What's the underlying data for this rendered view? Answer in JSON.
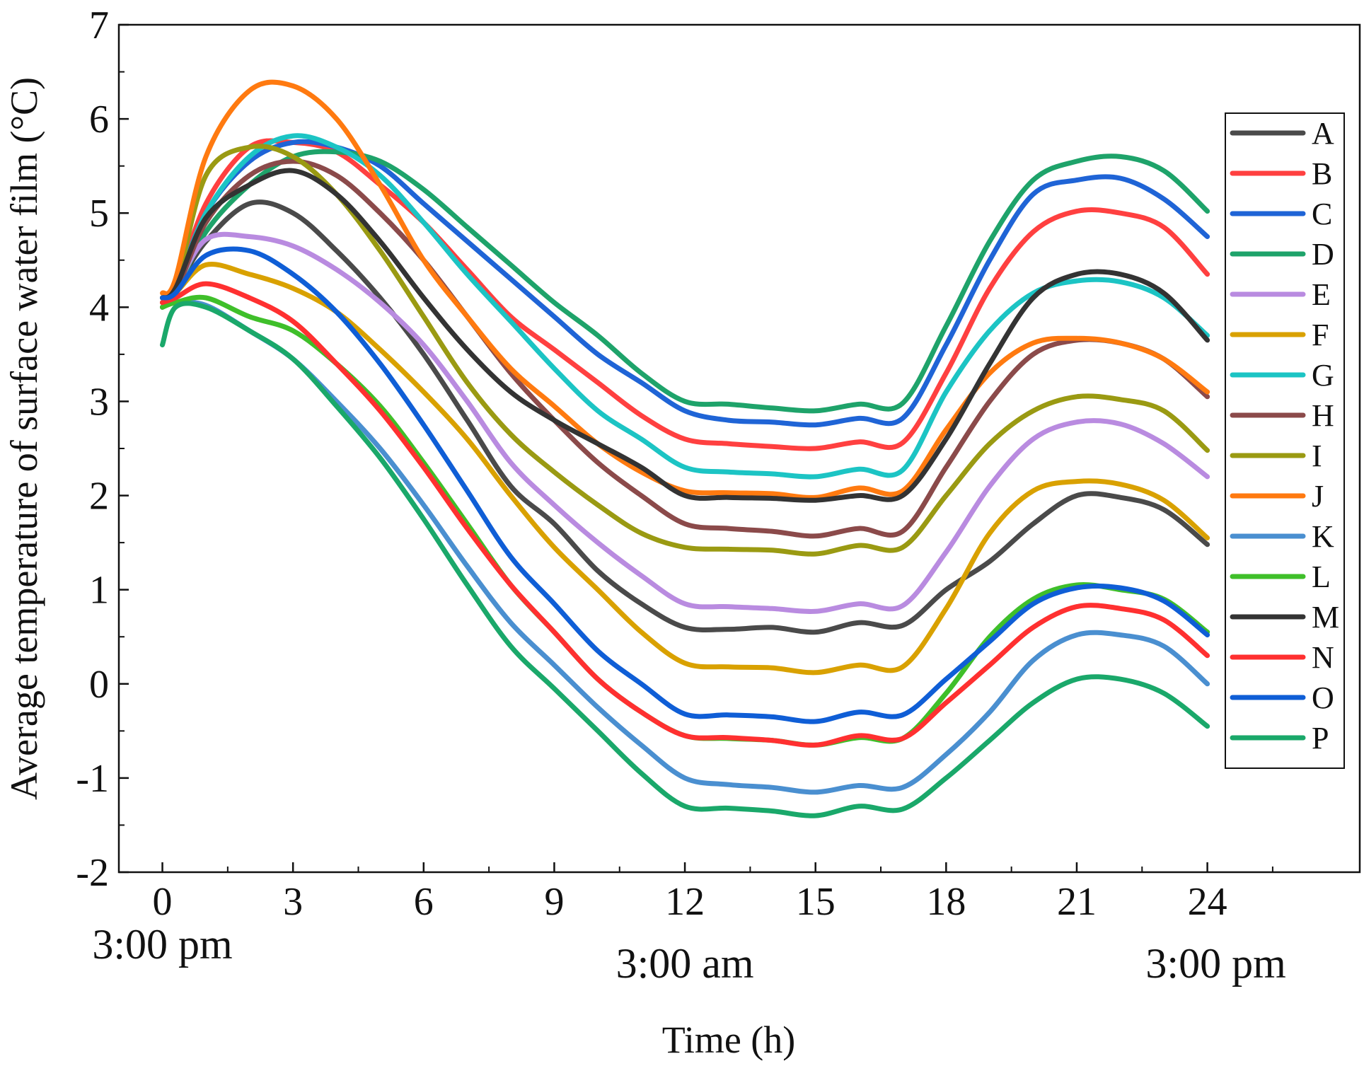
{
  "chart_data": {
    "type": "line",
    "title": "",
    "xlabel": "Time (h)",
    "ylabel": "Average temperature of surface water film (°C)",
    "xlim": [
      -1,
      27.5
    ],
    "ylim": [
      -2,
      7
    ],
    "xticks": [
      0,
      3,
      6,
      9,
      12,
      15,
      18,
      21,
      24
    ],
    "yticks": [
      -2,
      -1,
      0,
      1,
      2,
      3,
      4,
      5,
      6,
      7
    ],
    "time_notes": [
      {
        "x": 0,
        "label": "3:00 pm"
      },
      {
        "x": 12,
        "label": "3:00 am"
      },
      {
        "x": 24,
        "label": "3:00 pm"
      }
    ],
    "legend_position": "right",
    "x": [
      0,
      0.3,
      1,
      2,
      3,
      4,
      5,
      6,
      7,
      8,
      9,
      10,
      11,
      12,
      13,
      14,
      15,
      16,
      17,
      18,
      19,
      20,
      21,
      22,
      23,
      24
    ],
    "series": [
      {
        "name": "A",
        "color": "#4a4a4a",
        "values": [
          4.1,
          4.2,
          4.7,
          5.1,
          5.0,
          4.6,
          4.1,
          3.5,
          2.8,
          2.1,
          1.7,
          1.2,
          0.85,
          0.6,
          0.58,
          0.6,
          0.55,
          0.65,
          0.62,
          1.0,
          1.3,
          1.7,
          2.0,
          1.98,
          1.85,
          1.48
        ]
      },
      {
        "name": "B",
        "color": "#ff4040",
        "values": [
          4.0,
          4.2,
          5.1,
          5.7,
          5.75,
          5.65,
          5.3,
          4.9,
          4.4,
          3.9,
          3.55,
          3.2,
          2.85,
          2.6,
          2.55,
          2.52,
          2.5,
          2.57,
          2.56,
          3.3,
          4.2,
          4.8,
          5.02,
          5.0,
          4.85,
          4.35
        ]
      },
      {
        "name": "C",
        "color": "#1f64d6",
        "values": [
          4.05,
          4.2,
          5.0,
          5.55,
          5.75,
          5.7,
          5.5,
          5.1,
          4.7,
          4.3,
          3.9,
          3.5,
          3.2,
          2.9,
          2.8,
          2.78,
          2.75,
          2.82,
          2.82,
          3.6,
          4.5,
          5.2,
          5.35,
          5.37,
          5.15,
          4.75
        ]
      },
      {
        "name": "D",
        "color": "#1ea36a",
        "values": [
          4.0,
          4.15,
          4.8,
          5.3,
          5.6,
          5.65,
          5.55,
          5.25,
          4.85,
          4.45,
          4.05,
          3.7,
          3.3,
          3.0,
          2.97,
          2.93,
          2.9,
          2.97,
          2.98,
          3.8,
          4.7,
          5.35,
          5.55,
          5.6,
          5.45,
          5.02
        ]
      },
      {
        "name": "E",
        "color": "#b98be0",
        "values": [
          4.05,
          4.2,
          4.72,
          4.75,
          4.65,
          4.4,
          4.05,
          3.6,
          3.0,
          2.35,
          1.9,
          1.5,
          1.15,
          0.85,
          0.82,
          0.8,
          0.77,
          0.85,
          0.83,
          1.4,
          2.1,
          2.6,
          2.78,
          2.76,
          2.55,
          2.2
        ]
      },
      {
        "name": "F",
        "color": "#d9a100",
        "values": [
          4.05,
          4.15,
          4.45,
          4.35,
          4.2,
          3.95,
          3.55,
          3.1,
          2.6,
          2.0,
          1.45,
          1.0,
          0.55,
          0.22,
          0.18,
          0.17,
          0.12,
          0.2,
          0.18,
          0.8,
          1.6,
          2.05,
          2.15,
          2.12,
          1.95,
          1.55
        ]
      },
      {
        "name": "G",
        "color": "#1cc4c4",
        "values": [
          4.1,
          4.2,
          5.0,
          5.6,
          5.82,
          5.7,
          5.4,
          4.9,
          4.35,
          3.85,
          3.35,
          2.9,
          2.6,
          2.3,
          2.25,
          2.23,
          2.2,
          2.28,
          2.27,
          3.1,
          3.75,
          4.15,
          4.28,
          4.27,
          4.1,
          3.7
        ]
      },
      {
        "name": "H",
        "color": "#8b4a4a",
        "values": [
          4.0,
          4.15,
          4.9,
          5.4,
          5.55,
          5.4,
          5.0,
          4.5,
          3.9,
          3.3,
          2.8,
          2.35,
          2.0,
          1.7,
          1.65,
          1.62,
          1.57,
          1.65,
          1.62,
          2.3,
          3.0,
          3.5,
          3.65,
          3.62,
          3.45,
          3.05
        ]
      },
      {
        "name": "I",
        "color": "#9a9a12",
        "values": [
          4.1,
          4.2,
          5.4,
          5.7,
          5.6,
          5.2,
          4.6,
          3.9,
          3.2,
          2.65,
          2.25,
          1.9,
          1.6,
          1.45,
          1.43,
          1.42,
          1.38,
          1.47,
          1.45,
          2.0,
          2.55,
          2.9,
          3.05,
          3.02,
          2.9,
          2.48
        ]
      },
      {
        "name": "J",
        "color": "#ff7a10",
        "values": [
          4.15,
          4.3,
          5.6,
          6.3,
          6.35,
          6.0,
          5.3,
          4.5,
          3.9,
          3.35,
          2.95,
          2.55,
          2.25,
          2.05,
          2.03,
          2.02,
          1.98,
          2.08,
          2.05,
          2.7,
          3.3,
          3.62,
          3.67,
          3.62,
          3.45,
          3.1
        ]
      },
      {
        "name": "K",
        "color": "#4a8fd0",
        "values": [
          4.0,
          4.05,
          4.02,
          3.75,
          3.45,
          3.0,
          2.5,
          1.9,
          1.25,
          0.65,
          0.2,
          -0.25,
          -0.65,
          -1.0,
          -1.07,
          -1.1,
          -1.15,
          -1.08,
          -1.1,
          -0.75,
          -0.3,
          0.25,
          0.52,
          0.52,
          0.4,
          0.0
        ]
      },
      {
        "name": "L",
        "color": "#3fbf2a",
        "values": [
          4.0,
          4.05,
          4.1,
          3.9,
          3.75,
          3.4,
          2.95,
          2.35,
          1.7,
          1.05,
          0.55,
          0.05,
          -0.3,
          -0.55,
          -0.58,
          -0.6,
          -0.65,
          -0.57,
          -0.58,
          -0.1,
          0.5,
          0.9,
          1.05,
          1.0,
          0.9,
          0.55
        ]
      },
      {
        "name": "M",
        "color": "#333333",
        "values": [
          4.1,
          4.2,
          4.95,
          5.3,
          5.45,
          5.2,
          4.7,
          4.1,
          3.55,
          3.1,
          2.8,
          2.55,
          2.3,
          2.0,
          1.98,
          1.97,
          1.95,
          2.0,
          2.0,
          2.6,
          3.4,
          4.1,
          4.35,
          4.35,
          4.15,
          3.65
        ]
      },
      {
        "name": "N",
        "color": "#ff3030",
        "values": [
          4.05,
          4.1,
          4.25,
          4.1,
          3.85,
          3.4,
          2.9,
          2.3,
          1.65,
          1.05,
          0.55,
          0.05,
          -0.3,
          -0.55,
          -0.57,
          -0.6,
          -0.65,
          -0.55,
          -0.58,
          -0.2,
          0.2,
          0.6,
          0.82,
          0.8,
          0.68,
          0.3
        ]
      },
      {
        "name": "O",
        "color": "#0f5ed6",
        "values": [
          4.1,
          4.15,
          4.55,
          4.6,
          4.35,
          3.95,
          3.4,
          2.75,
          2.05,
          1.35,
          0.85,
          0.35,
          0.0,
          -0.32,
          -0.33,
          -0.35,
          -0.4,
          -0.3,
          -0.33,
          0.05,
          0.45,
          0.85,
          1.02,
          1.02,
          0.88,
          0.52
        ]
      },
      {
        "name": "P",
        "color": "#1aa86a",
        "values": [
          3.6,
          4.0,
          4.0,
          3.75,
          3.45,
          2.95,
          2.4,
          1.75,
          1.05,
          0.4,
          -0.05,
          -0.5,
          -0.95,
          -1.3,
          -1.32,
          -1.35,
          -1.4,
          -1.3,
          -1.33,
          -1.0,
          -0.6,
          -0.2,
          0.05,
          0.05,
          -0.1,
          -0.45
        ]
      }
    ]
  }
}
